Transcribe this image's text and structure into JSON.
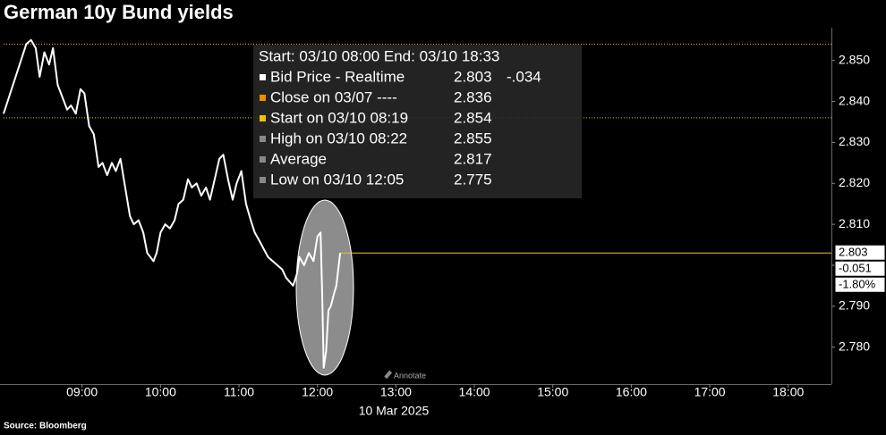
{
  "chart_data": {
    "type": "line",
    "title": "German 10y Bund yields",
    "source": "Source: Bloomberg",
    "x_label": "10 Mar 2025",
    "annotate_label": "Annotate",
    "x": [
      8.0,
      8.29,
      8.35,
      8.41,
      8.46,
      8.52,
      8.58,
      8.63,
      8.69,
      8.75,
      8.81,
      8.86,
      8.92,
      8.98,
      9.03,
      9.09,
      9.15,
      9.21,
      9.26,
      9.32,
      9.38,
      9.43,
      9.49,
      9.55,
      9.61,
      9.66,
      9.72,
      9.78,
      9.83,
      9.91,
      9.95,
      10.0,
      10.06,
      10.12,
      10.18,
      10.23,
      10.29,
      10.35,
      10.4,
      10.46,
      10.52,
      10.58,
      10.63,
      10.69,
      10.75,
      10.8,
      10.86,
      10.92,
      10.97,
      11.03,
      11.09,
      11.15,
      11.2,
      11.26,
      11.37,
      11.43,
      11.49,
      11.55,
      11.6,
      11.69,
      11.74,
      11.77,
      11.83,
      11.89,
      11.95,
      12.0,
      12.04,
      12.06,
      12.08,
      12.11,
      12.14,
      12.17,
      12.21,
      12.24,
      12.29
    ],
    "series": [
      {
        "name": "Bid Price - Realtime",
        "color": "#ffffff",
        "values": [
          2.837,
          2.854,
          2.855,
          2.853,
          2.846,
          2.852,
          2.849,
          2.853,
          2.844,
          2.841,
          2.838,
          2.839,
          2.837,
          2.843,
          2.842,
          2.834,
          2.832,
          2.824,
          2.825,
          2.822,
          2.825,
          2.823,
          2.826,
          2.819,
          2.812,
          2.81,
          2.811,
          2.808,
          2.803,
          2.801,
          2.803,
          2.808,
          2.81,
          2.809,
          2.811,
          2.815,
          2.816,
          2.821,
          2.819,
          2.82,
          2.817,
          2.819,
          2.816,
          2.821,
          2.826,
          2.827,
          2.821,
          2.816,
          2.82,
          2.823,
          2.815,
          2.811,
          2.808,
          2.806,
          2.802,
          2.801,
          2.8,
          2.799,
          2.797,
          2.795,
          2.798,
          2.802,
          2.8,
          2.803,
          2.801,
          2.807,
          2.808,
          2.793,
          2.775,
          2.779,
          2.789,
          2.79,
          2.793,
          2.795,
          2.803
        ]
      }
    ],
    "xlim": [
      8,
      18.55
    ],
    "xticks": [
      {
        "value": 9,
        "label": "09:00"
      },
      {
        "value": 10,
        "label": "10:00"
      },
      {
        "value": 11,
        "label": "11:00"
      },
      {
        "value": 12,
        "label": "12:00"
      },
      {
        "value": 13,
        "label": "13:00"
      },
      {
        "value": 14,
        "label": "14:00"
      },
      {
        "value": 15,
        "label": "15:00"
      },
      {
        "value": 16,
        "label": "16:00"
      },
      {
        "value": 17,
        "label": "17:00"
      },
      {
        "value": 18,
        "label": "18:00"
      }
    ],
    "ylim": [
      2.771,
      2.858
    ],
    "yticks": [
      {
        "value": 2.78,
        "label": "2.780"
      },
      {
        "value": 2.79,
        "label": "2.790"
      },
      {
        "value": 2.8,
        "label": "2.800"
      },
      {
        "value": 2.81,
        "label": "2.810"
      },
      {
        "value": 2.82,
        "label": "2.820"
      },
      {
        "value": 2.83,
        "label": "2.830"
      },
      {
        "value": 2.84,
        "label": "2.840"
      },
      {
        "value": 2.85,
        "label": "2.850"
      }
    ],
    "legend_header": "Start: 03/10 08:00 End: 03/10 18:33",
    "legend": [
      {
        "label": "Bid Price - Realtime",
        "value": 2.803,
        "value_label": "2.803",
        "change": -0.034,
        "change_label": "-.034",
        "color": "#ffffff",
        "line": "solid",
        "line_color": "#e8c53a"
      },
      {
        "label": "Close on 03/07 ----",
        "value": 2.836,
        "value_label": "2.836",
        "color": "#f08c00",
        "line": "dotted",
        "line_color": "#e8c53a"
      },
      {
        "label": "Start on 03/10 08:19",
        "value": 2.854,
        "value_label": "2.854",
        "color": "#f2c200",
        "line": "dotted",
        "line_color": "#e8c53a"
      },
      {
        "label": "High on 03/10 08:22",
        "value": 2.855,
        "value_label": "2.855",
        "color": "#888888"
      },
      {
        "label": "Average",
        "value": 2.817,
        "value_label": "2.817",
        "color": "#888888"
      },
      {
        "label": "Low on 03/10 12:05",
        "value": 2.775,
        "value_label": "2.775",
        "color": "#888888"
      }
    ],
    "last_labels": [
      {
        "value": 2.803,
        "label": "2.803"
      },
      {
        "value": -0.051,
        "label": "-0.051"
      },
      {
        "value": -1.8,
        "label": "-1.80%"
      }
    ]
  }
}
